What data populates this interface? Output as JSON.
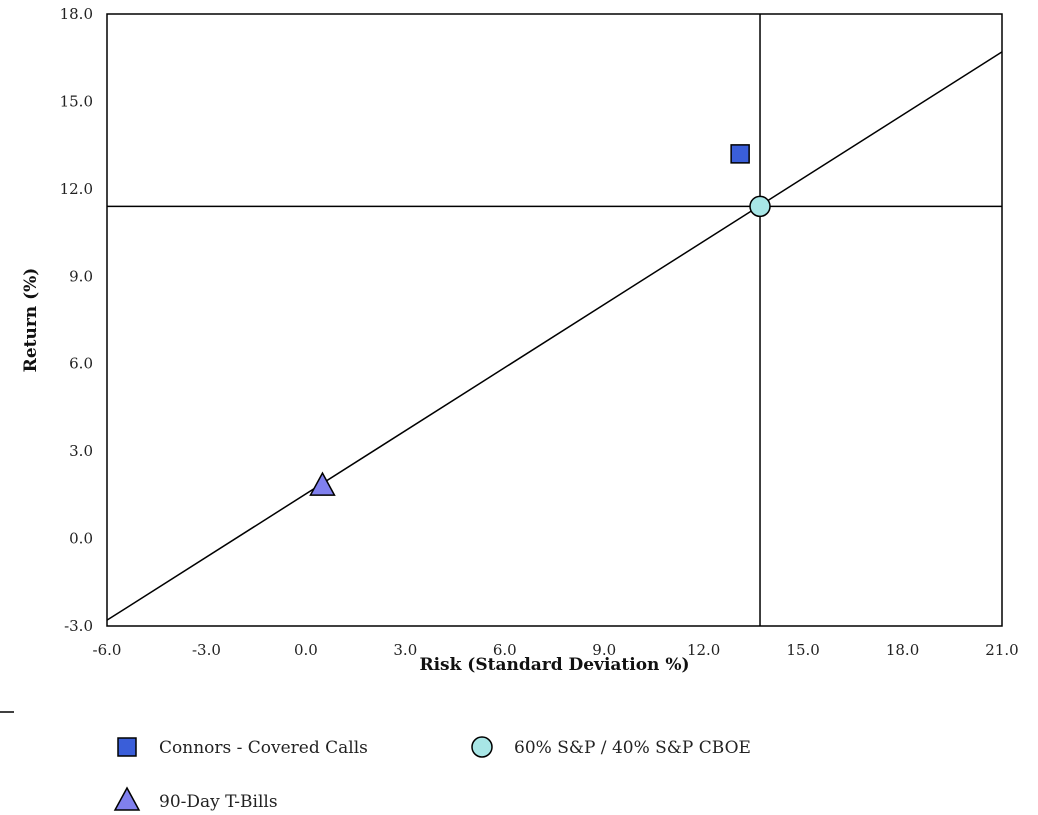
{
  "chart_data": {
    "type": "scatter",
    "xlabel": "Risk (Standard Deviation %)",
    "ylabel": "Return (%)",
    "xlim": [
      -6.0,
      21.0
    ],
    "ylim": [
      -3.0,
      18.0
    ],
    "xticks": [
      "-6.0",
      "-3.0",
      "0.0",
      "3.0",
      "6.0",
      "9.0",
      "12.0",
      "15.0",
      "18.0",
      "21.0"
    ],
    "yticks": [
      "-3.0",
      "0.0",
      "3.0",
      "6.0",
      "9.0",
      "12.0",
      "15.0",
      "18.0"
    ],
    "grid": false,
    "legend_position": "bottom",
    "series": [
      {
        "name": "Connors - Covered Calls",
        "marker": "square",
        "color": "#3a5ed9",
        "x": 13.1,
        "y": 13.2
      },
      {
        "name": "60% S&P / 40% S&P CBOE",
        "marker": "circle",
        "color": "#a8e6e6",
        "x": 13.7,
        "y": 11.4
      },
      {
        "name": "90-Day T-Bills",
        "marker": "triangle",
        "color": "#8080ee",
        "x": 0.5,
        "y": 1.8
      }
    ],
    "market_line": {
      "x": [
        -6.0,
        21.0
      ],
      "y": [
        -2.8,
        16.7
      ]
    },
    "crosshair": {
      "x": 13.7,
      "y": 11.4
    }
  }
}
